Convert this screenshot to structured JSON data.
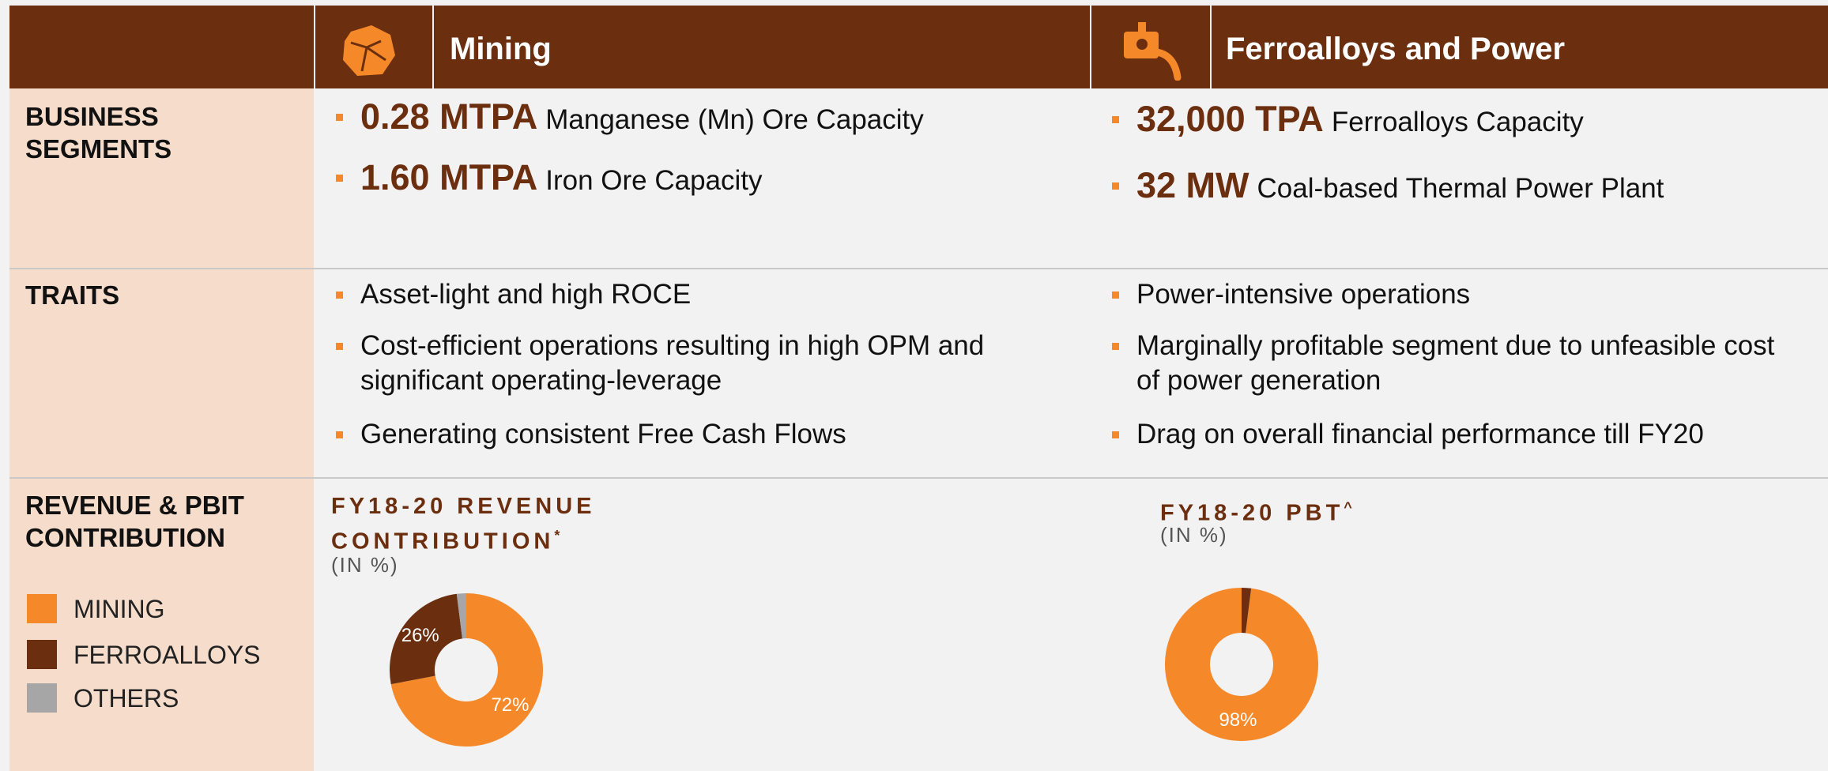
{
  "header": {
    "columns": [
      "Mining",
      "Ferroalloys and Power"
    ]
  },
  "rows": [
    {
      "label": "BUSINESS SEGMENTS",
      "mining": [
        {
          "figure": "0.28 MTPA",
          "text": "Manganese (Mn) Ore Capacity"
        },
        {
          "figure": "1.60 MTPA",
          "text": "Iron Ore Capacity"
        }
      ],
      "ferro": [
        {
          "figure": "32,000 TPA",
          "text": "Ferroalloys Capacity"
        },
        {
          "figure": "32 MW",
          "text": "Coal-based Thermal Power Plant"
        }
      ]
    },
    {
      "label": "TRAITS",
      "mining": [
        "Asset-light and high ROCE",
        "Cost-efficient operations resulting in high OPM and significant operating-leverage",
        "Generating consistent Free Cash Flows"
      ],
      "ferro": [
        "Power-intensive operations",
        "Marginally profitable segment due to unfeasible cost of power generation",
        "Drag on overall financial performance till FY20"
      ]
    },
    {
      "label": "REVENUE & PBIT CONTRIBUTION"
    }
  ],
  "legend": [
    {
      "name": "MINING",
      "color": "#f5892a"
    },
    {
      "name": "FERROALLOYS",
      "color": "#6b2e0f"
    },
    {
      "name": "OTHERS",
      "color": "#a6a6a6"
    }
  ],
  "chart_data": [
    {
      "type": "pie",
      "title": "FY18-20 REVENUE CONTRIBUTION",
      "title_mark": "*",
      "subtitle": "(IN %)",
      "values": [
        72,
        26,
        2
      ],
      "value_labels": [
        "72%",
        "26%",
        null
      ]
    },
    {
      "type": "pie",
      "title": "FY18-20 PBT",
      "title_mark": "^",
      "subtitle": "(IN %)",
      "values": [
        98,
        2
      ],
      "value_labels": [
        "98%",
        null
      ]
    }
  ]
}
